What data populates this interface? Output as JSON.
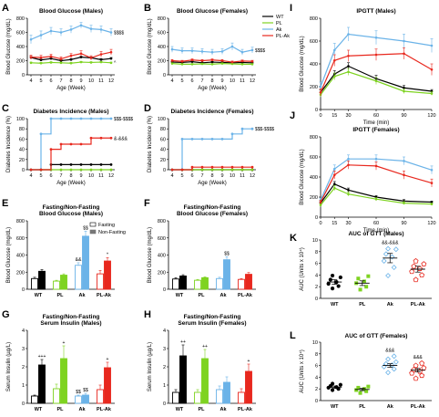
{
  "colors": {
    "WT": "#000000",
    "PL": "#7ed321",
    "Ak": "#6bb3e8",
    "PL-Ak": "#e8281e",
    "black": "#000000"
  },
  "series_names": [
    "WT",
    "PL",
    "Ak",
    "PL-Ak"
  ],
  "bar_legend": {
    "fasting": "Fasting",
    "nonfasting": "Non-Fasting"
  },
  "chart_data": [
    {
      "id": "A",
      "type": "line",
      "title": "Blood Glucose (Males)",
      "xlabel": "Age (Week)",
      "ylabel": "Blood Glucose (mg/dL)",
      "x": [
        4,
        5,
        6,
        7,
        8,
        9,
        10,
        11,
        12
      ],
      "ylim": [
        0,
        800
      ],
      "yticks": [
        0,
        200,
        400,
        600,
        800
      ],
      "series": [
        {
          "name": "WT",
          "values": [
            245,
            210,
            230,
            200,
            215,
            250,
            240,
            215,
            230
          ],
          "errors": [
            15,
            15,
            15,
            15,
            15,
            15,
            15,
            15,
            15
          ]
        },
        {
          "name": "PL",
          "values": [
            170,
            165,
            175,
            170,
            165,
            180,
            175,
            180,
            170
          ],
          "errors": [
            10,
            10,
            10,
            10,
            10,
            10,
            10,
            10,
            10
          ]
        },
        {
          "name": "Ak",
          "values": [
            500,
            560,
            620,
            600,
            640,
            700,
            650,
            640,
            600
          ],
          "errors": [
            60,
            60,
            50,
            50,
            50,
            40,
            50,
            50,
            50
          ]
        },
        {
          "name": "PL-Ak",
          "values": [
            250,
            245,
            260,
            225,
            270,
            300,
            240,
            290,
            320
          ],
          "errors": [
            30,
            30,
            30,
            30,
            30,
            40,
            30,
            40,
            40
          ]
        }
      ],
      "annotations": [
        {
          "text": "$$$$",
          "x": 12,
          "y": 600
        },
        {
          "text": "^",
          "x": 12,
          "y": 175
        }
      ]
    },
    {
      "id": "B",
      "type": "line",
      "title": "Blood Glucose (Females)",
      "xlabel": "Age (Week)",
      "ylabel": "Blood Glucose (mg/dL)",
      "x": [
        4,
        5,
        6,
        7,
        8,
        9,
        10,
        11,
        12
      ],
      "ylim": [
        0,
        800
      ],
      "yticks": [
        0,
        200,
        400,
        600,
        800
      ],
      "series": [
        {
          "name": "WT",
          "values": [
            180,
            175,
            185,
            170,
            180,
            175,
            170,
            175,
            170
          ],
          "errors": [
            10,
            10,
            10,
            10,
            10,
            10,
            10,
            10,
            10
          ]
        },
        {
          "name": "PL",
          "values": [
            160,
            150,
            150,
            155,
            150,
            160,
            155,
            150,
            150
          ],
          "errors": [
            10,
            10,
            10,
            10,
            10,
            10,
            10,
            10,
            10
          ]
        },
        {
          "name": "Ak",
          "values": [
            360,
            340,
            340,
            330,
            320,
            330,
            400,
            320,
            350
          ],
          "errors": [
            40,
            40,
            40,
            40,
            40,
            40,
            50,
            40,
            40
          ]
        },
        {
          "name": "PL-Ak",
          "values": [
            200,
            190,
            210,
            200,
            210,
            200,
            180,
            195,
            190
          ],
          "errors": [
            15,
            15,
            15,
            15,
            15,
            15,
            15,
            15,
            15
          ]
        }
      ],
      "annotations": [
        {
          "text": "$$$$",
          "x": 12,
          "y": 350
        }
      ]
    },
    {
      "id": "C",
      "type": "line",
      "step": true,
      "title": "Diabetes Incidence (Males)",
      "xlabel": "Age (Week)",
      "ylabel": "Diabetes Incidence (%)",
      "x": [
        4,
        5,
        6,
        7,
        8,
        9,
        10,
        11,
        12
      ],
      "ylim": [
        0,
        100
      ],
      "yticks": [
        0,
        20,
        40,
        60,
        80,
        100
      ],
      "series": [
        {
          "name": "WT",
          "values": [
            0,
            0,
            10,
            10,
            10,
            10,
            10,
            10,
            10
          ]
        },
        {
          "name": "PL",
          "values": [
            0,
            0,
            0,
            0,
            0,
            0,
            0,
            0,
            0
          ]
        },
        {
          "name": "Ak",
          "values": [
            0,
            70,
            100,
            100,
            100,
            100,
            100,
            100,
            100
          ]
        },
        {
          "name": "PL-Ak",
          "values": [
            0,
            0,
            40,
            50,
            50,
            50,
            62,
            62,
            62
          ]
        }
      ],
      "annotations": [
        {
          "text": "$$$-$$$$",
          "x": 12,
          "y": 100
        },
        {
          "text": "&-&&&",
          "x": 12,
          "y": 62
        }
      ]
    },
    {
      "id": "D",
      "type": "line",
      "step": true,
      "title": "Diabetes Incidence (Females)",
      "xlabel": "Age (Week)",
      "ylabel": "Diabetes Incidence (%)",
      "x": [
        4,
        5,
        6,
        7,
        8,
        9,
        10,
        11,
        12
      ],
      "ylim": [
        0,
        100
      ],
      "yticks": [
        0,
        20,
        40,
        60,
        80,
        100
      ],
      "series": [
        {
          "name": "WT",
          "values": [
            0,
            0,
            0,
            0,
            0,
            0,
            0,
            0,
            0
          ]
        },
        {
          "name": "PL",
          "values": [
            0,
            0,
            0,
            0,
            0,
            0,
            0,
            0,
            0
          ]
        },
        {
          "name": "Ak",
          "values": [
            0,
            60,
            60,
            60,
            60,
            60,
            70,
            80,
            80
          ]
        },
        {
          "name": "PL-Ak",
          "values": [
            0,
            0,
            5,
            5,
            5,
            5,
            5,
            5,
            5
          ]
        }
      ],
      "annotations": [
        {
          "text": "$$$-$$$$",
          "x": 12,
          "y": 80
        }
      ]
    },
    {
      "id": "E",
      "type": "bar",
      "title": "Fasting/Non-Fasting Blood Glucose (Males)",
      "ylabel": "Blood Glucose (mg/dL)",
      "categories": [
        "WT",
        "PL",
        "Ak",
        "PL-Ak"
      ],
      "ylim": [
        0,
        800
      ],
      "yticks": [
        0,
        200,
        400,
        600,
        800
      ],
      "series": [
        {
          "name": "Fasting",
          "values": [
            125,
            95,
            280,
            180
          ],
          "errors": [
            15,
            10,
            30,
            40
          ]
        },
        {
          "name": "Non-Fasting",
          "values": [
            210,
            165,
            620,
            330
          ],
          "errors": [
            20,
            15,
            60,
            40
          ]
        }
      ],
      "annotations": [
        {
          "text": "&&",
          "cat": 2,
          "bar": 0
        },
        {
          "text": "$$",
          "cat": 2,
          "bar": 1
        },
        {
          "text": "*",
          "cat": 3,
          "bar": 1
        }
      ]
    },
    {
      "id": "F",
      "type": "bar",
      "title": "Fasting/Non-Fasting Blood Glucose (Females)",
      "ylabel": "Blood Glucose (mg/dL)",
      "categories": [
        "WT",
        "PL",
        "Ak",
        "PL-Ak"
      ],
      "ylim": [
        0,
        800
      ],
      "yticks": [
        0,
        200,
        400,
        600,
        800
      ],
      "series": [
        {
          "name": "Fasting",
          "values": [
            120,
            105,
            125,
            115
          ],
          "errors": [
            15,
            10,
            15,
            10
          ]
        },
        {
          "name": "Non-Fasting",
          "values": [
            155,
            135,
            345,
            175
          ],
          "errors": [
            15,
            10,
            35,
            20
          ]
        }
      ],
      "annotations": [
        {
          "text": "$$",
          "cat": 2,
          "bar": 1
        }
      ]
    },
    {
      "id": "G",
      "type": "bar",
      "title": "Fasting/Non-Fasting Serum Insulin (Males)",
      "ylabel": "Serum Insulin (µg/L)",
      "categories": [
        "WT",
        "PL",
        "Ak",
        "PL-Ak"
      ],
      "ylim": [
        0,
        4
      ],
      "yticks": [
        0,
        1,
        2,
        3,
        4
      ],
      "series": [
        {
          "name": "Fasting",
          "values": [
            0.4,
            0.8,
            0.4,
            0.75
          ],
          "errors": [
            0.05,
            0.25,
            0.05,
            0.25
          ]
        },
        {
          "name": "Non-Fasting",
          "values": [
            2.1,
            2.45,
            0.45,
            1.95
          ],
          "errors": [
            0.3,
            0.7,
            0.1,
            0.3
          ]
        }
      ],
      "annotations": [
        {
          "text": "+++",
          "cat": 0,
          "bar": 1
        },
        {
          "text": "+",
          "cat": 1,
          "bar": 1
        },
        {
          "text": "$$",
          "cat": 2,
          "bar": 0
        },
        {
          "text": "$$",
          "cat": 2,
          "bar": 1
        },
        {
          "text": "+",
          "cat": 3,
          "bar": 1
        }
      ]
    },
    {
      "id": "H",
      "type": "bar",
      "title": "Fasting/Non-Fasting Serum Insulin (Females)",
      "ylabel": "Serum Insulin (µg/L)",
      "categories": [
        "WT",
        "PL",
        "Ak",
        "PL-Ak"
      ],
      "ylim": [
        0,
        4
      ],
      "yticks": [
        0,
        1,
        2,
        3,
        4
      ],
      "series": [
        {
          "name": "Fasting",
          "values": [
            0.6,
            0.6,
            0.75,
            0.6
          ],
          "errors": [
            0.15,
            0.15,
            0.2,
            0.2
          ]
        },
        {
          "name": "Non-Fasting",
          "values": [
            2.6,
            2.45,
            1.15,
            1.75
          ],
          "errors": [
            0.6,
            0.5,
            0.3,
            0.4
          ]
        }
      ],
      "annotations": [
        {
          "text": "++",
          "cat": 0,
          "bar": 1
        },
        {
          "text": "++",
          "cat": 1,
          "bar": 1
        },
        {
          "text": "+",
          "cat": 3,
          "bar": 1
        }
      ]
    },
    {
      "id": "I",
      "type": "line",
      "title": "IPGTT (Males)",
      "xlabel": "Time (min)",
      "ylabel": "Blood Glucose (mg/dL)",
      "x": [
        0,
        15,
        30,
        60,
        90,
        120
      ],
      "ylim": [
        0,
        800
      ],
      "yticks": [
        0,
        200,
        400,
        600,
        800
      ],
      "xticks": [
        0,
        15,
        30,
        60,
        90,
        120
      ],
      "series": [
        {
          "name": "WT",
          "values": [
            150,
            310,
            380,
            270,
            190,
            160
          ],
          "errors": [
            20,
            30,
            30,
            30,
            20,
            15
          ]
        },
        {
          "name": "PL",
          "values": [
            130,
            290,
            330,
            250,
            160,
            140
          ],
          "errors": [
            20,
            30,
            30,
            30,
            20,
            15
          ]
        },
        {
          "name": "Ak",
          "values": [
            200,
            520,
            660,
            630,
            600,
            560
          ],
          "errors": [
            40,
            60,
            60,
            60,
            60,
            60
          ]
        },
        {
          "name": "PL-Ak",
          "values": [
            150,
            430,
            470,
            480,
            490,
            350
          ],
          "errors": [
            30,
            50,
            50,
            50,
            50,
            50
          ]
        }
      ]
    },
    {
      "id": "J",
      "type": "line",
      "title": "IPGTT (Females)",
      "xlabel": "Time (min)",
      "ylabel": "Blood Glucose (mg/dL)",
      "x": [
        0,
        15,
        30,
        60,
        90,
        120
      ],
      "ylim": [
        0,
        800
      ],
      "yticks": [
        0,
        200,
        400,
        600,
        800
      ],
      "xticks": [
        0,
        15,
        30,
        60,
        90,
        120
      ],
      "series": [
        {
          "name": "WT",
          "values": [
            140,
            330,
            270,
            200,
            160,
            150
          ],
          "errors": [
            15,
            25,
            20,
            15,
            15,
            10
          ]
        },
        {
          "name": "PL",
          "values": [
            120,
            290,
            230,
            180,
            140,
            130
          ],
          "errors": [
            15,
            25,
            20,
            15,
            15,
            10
          ]
        },
        {
          "name": "Ak",
          "values": [
            170,
            480,
            580,
            580,
            560,
            470
          ],
          "errors": [
            20,
            40,
            40,
            40,
            40,
            40
          ]
        },
        {
          "name": "PL-Ak",
          "values": [
            150,
            420,
            520,
            510,
            420,
            340
          ],
          "errors": [
            20,
            40,
            40,
            40,
            40,
            40
          ]
        }
      ]
    },
    {
      "id": "K",
      "type": "scatter",
      "title": "AUC of GTT (Males)",
      "ylabel": "AUC (Units x 10⁴)",
      "categories": [
        "WT",
        "PL",
        "Ak",
        "PL-Ak"
      ],
      "ylim": [
        0,
        10
      ],
      "yticks": [
        0,
        2,
        4,
        6,
        8,
        10
      ],
      "groups": [
        {
          "name": "WT",
          "mean": 2.8,
          "sem": 0.4,
          "points": [
            1.7,
            2.1,
            2.5,
            2.8,
            3.2,
            3.6,
            3.9
          ]
        },
        {
          "name": "PL",
          "mean": 2.6,
          "sem": 0.4,
          "points": [
            1.5,
            2.0,
            2.6,
            2.9,
            3.4,
            3.8
          ]
        },
        {
          "name": "Ak",
          "mean": 6.9,
          "sem": 0.8,
          "points": [
            3.9,
            5.3,
            6.4,
            7.1,
            7.6,
            8.4,
            8.5
          ]
        },
        {
          "name": "PL-Ak",
          "mean": 5.0,
          "sem": 0.5,
          "points": [
            3.2,
            4.0,
            4.6,
            5.1,
            5.5,
            5.9,
            6.4
          ]
        }
      ],
      "annotations": [
        {
          "text": "&&-&&&",
          "cat": 2
        }
      ]
    },
    {
      "id": "L",
      "type": "scatter",
      "title": "AUC of GTT (Females)",
      "ylabel": "AUC (Units x 10⁴)",
      "categories": [
        "WT",
        "PL",
        "Ak",
        "PL-Ak"
      ],
      "ylim": [
        0,
        10
      ],
      "yticks": [
        0,
        2,
        4,
        6,
        8,
        10
      ],
      "groups": [
        {
          "name": "WT",
          "mean": 2.3,
          "sem": 0.2,
          "points": [
            1.8,
            2.0,
            2.2,
            2.3,
            2.5,
            2.7,
            2.9
          ]
        },
        {
          "name": "PL",
          "mean": 1.9,
          "sem": 0.2,
          "points": [
            1.3,
            1.6,
            1.8,
            2.0,
            2.2,
            2.4
          ]
        },
        {
          "name": "Ak",
          "mean": 6.0,
          "sem": 0.3,
          "points": [
            4.8,
            5.4,
            5.8,
            6.1,
            6.3,
            6.6,
            7.1,
            7.6
          ]
        },
        {
          "name": "PL-Ak",
          "mean": 5.2,
          "sem": 0.3,
          "points": [
            3.8,
            4.3,
            4.7,
            5.0,
            5.3,
            5.6,
            6.0,
            6.4
          ]
        }
      ],
      "annotations": [
        {
          "text": "&&&",
          "cat": 2
        },
        {
          "text": "&&&",
          "cat": 3
        }
      ]
    }
  ]
}
